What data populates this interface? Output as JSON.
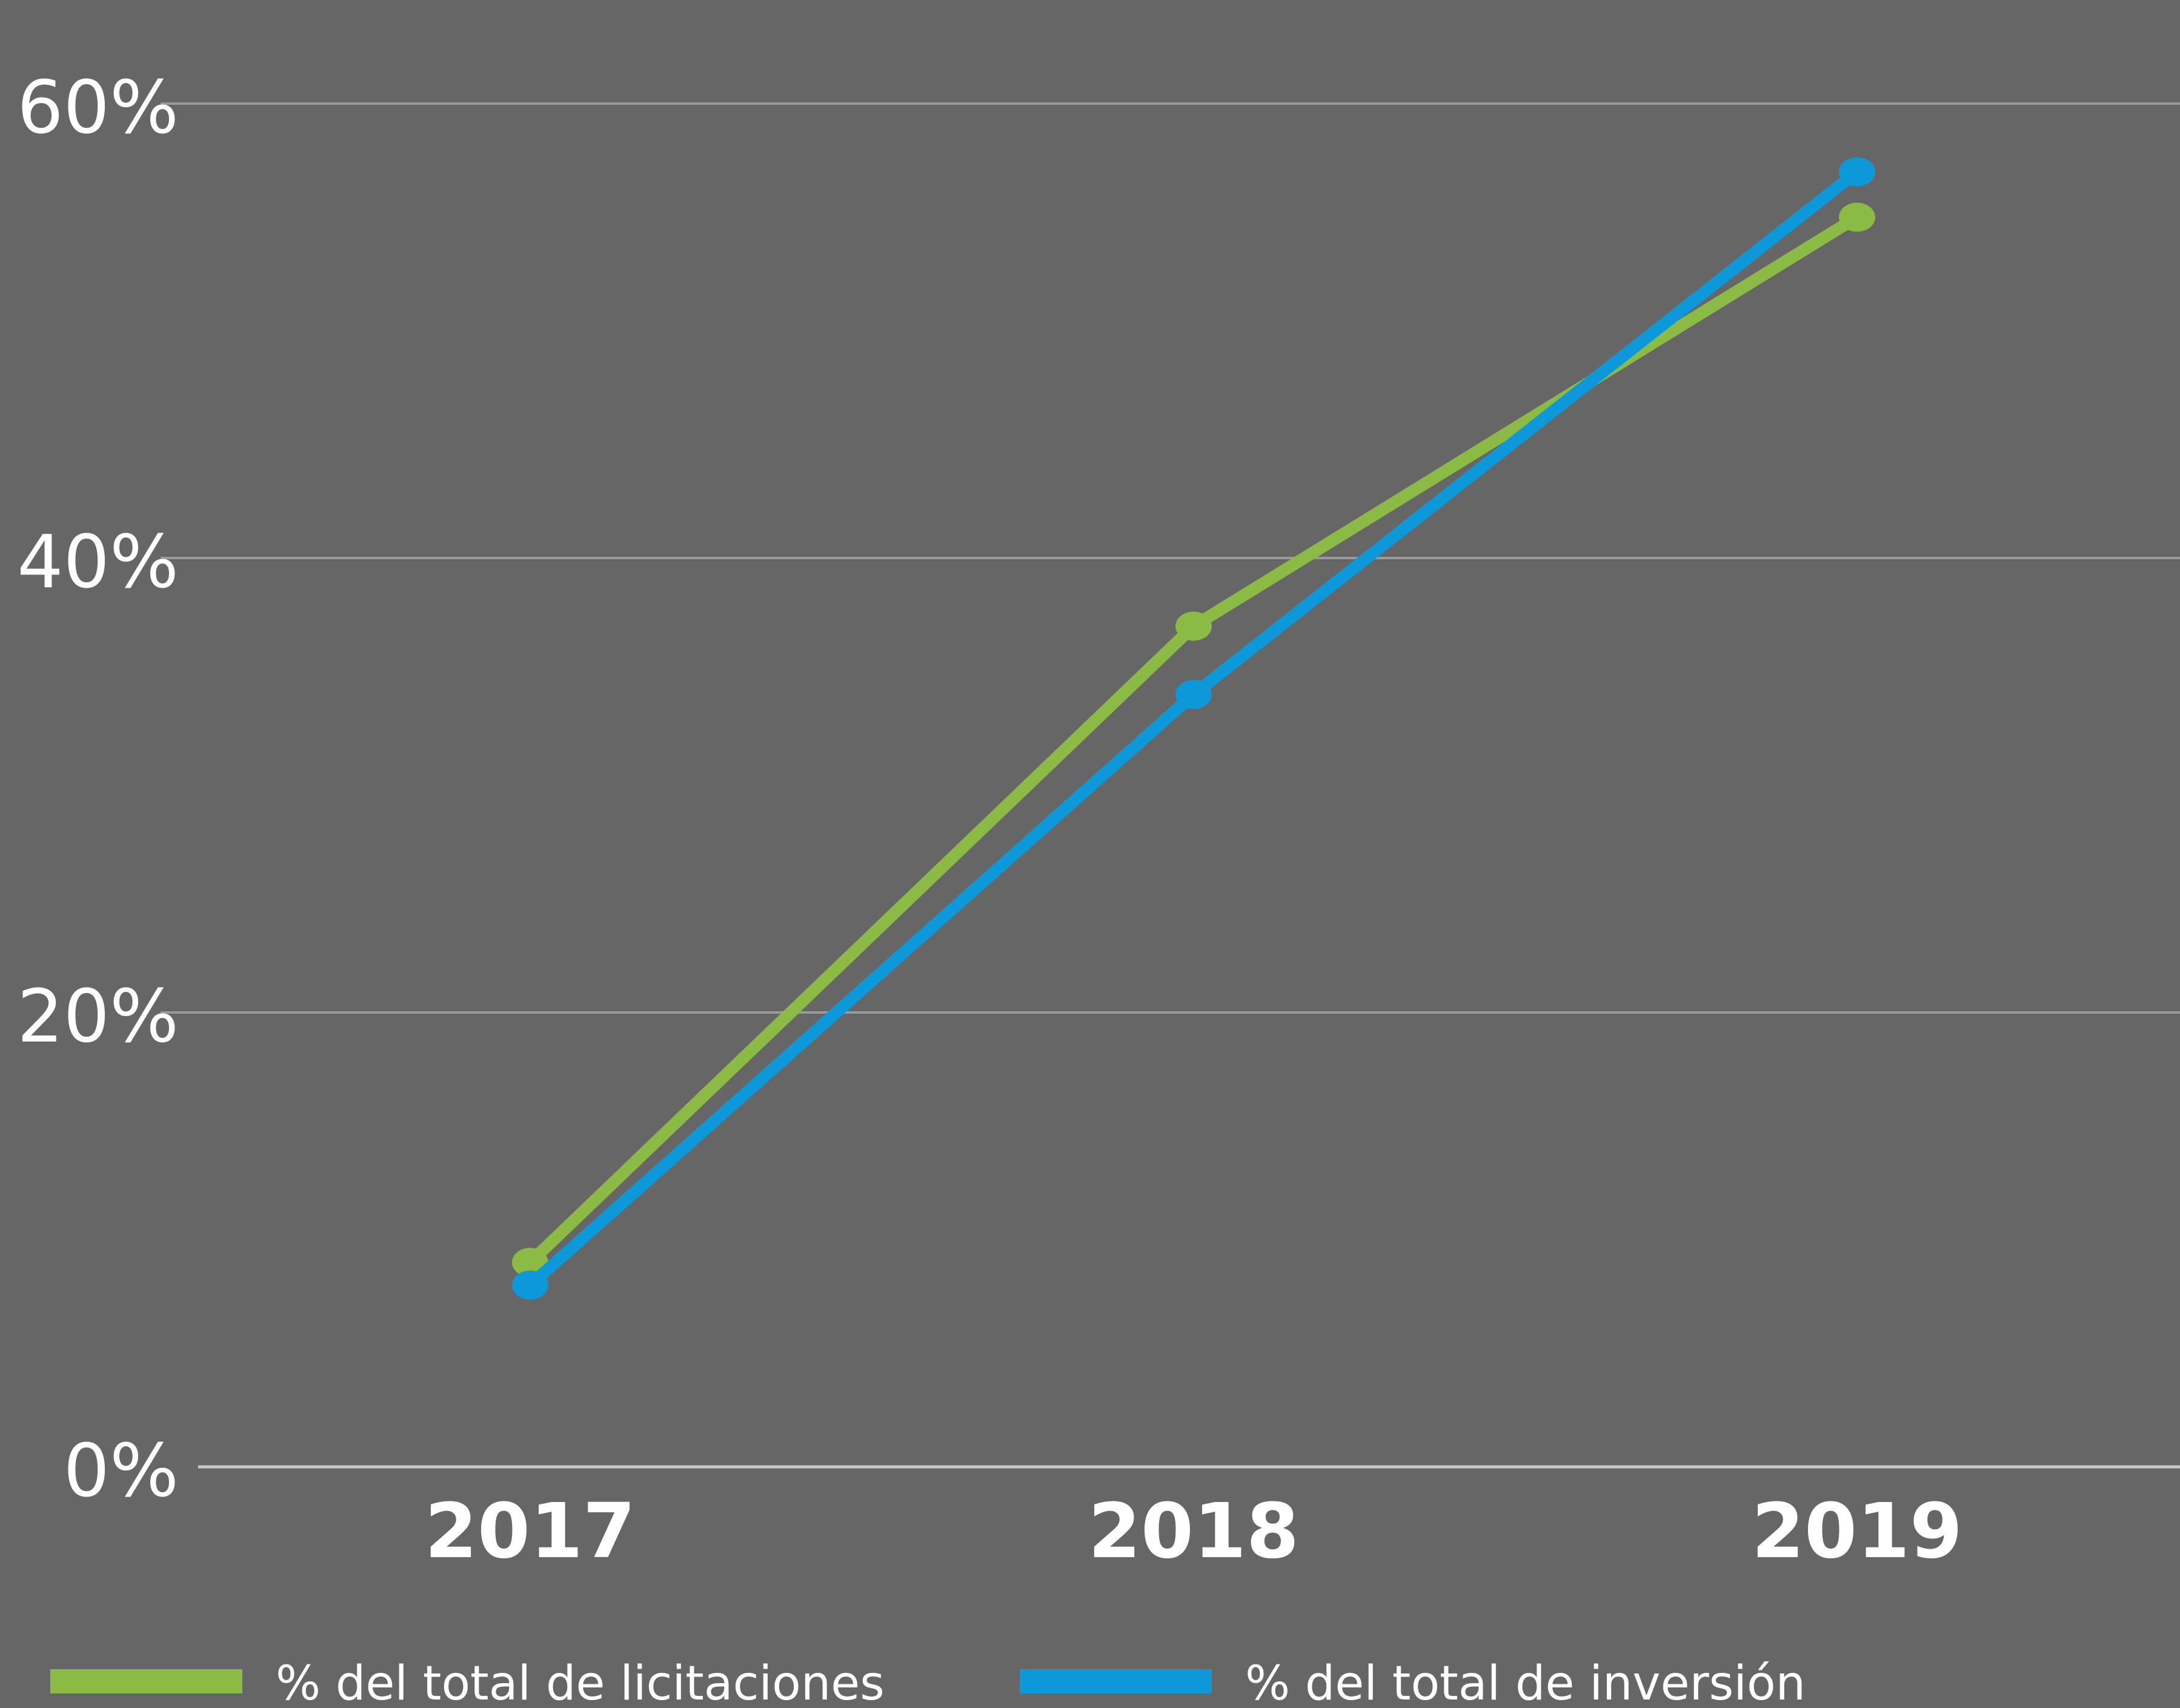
{
  "chart_data": {
    "type": "line",
    "categories": [
      "2017",
      "2018",
      "2019"
    ],
    "series": [
      {
        "name": "% del total de licitaciones",
        "values": [
          9,
          37,
          55
        ],
        "color": "#8bbb45"
      },
      {
        "name": "% del total de inversión",
        "values": [
          8,
          34,
          57
        ],
        "color": "#0d99d9"
      }
    ],
    "yticks": [
      {
        "value": 0,
        "label": "0%"
      },
      {
        "value": 20,
        "label": "20%"
      },
      {
        "value": 40,
        "label": "40%"
      },
      {
        "value": 60,
        "label": "60%"
      }
    ],
    "ylim": [
      0,
      60
    ],
    "grid": true,
    "legend_position": "bottom",
    "title": "",
    "xlabel": "",
    "ylabel": "",
    "colors": {
      "background": "#666666",
      "gridline": "#9a9a9a",
      "axis": "#c8c8c8",
      "text": "#ffffff"
    }
  }
}
